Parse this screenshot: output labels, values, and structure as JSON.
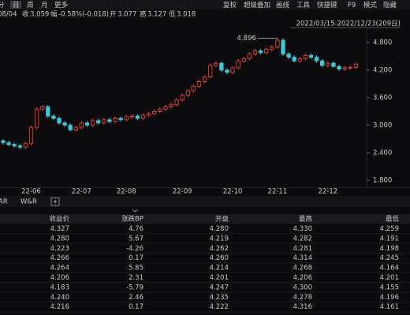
{
  "toolbar": {
    "periods": [
      "分",
      "日",
      "周",
      "月",
      "更多"
    ],
    "active_period": 1,
    "tools": [
      "复权",
      "超级叠加",
      "画线",
      "工具",
      "快捷键",
      "F9",
      "模式",
      "隐藏"
    ]
  },
  "quote": {
    "date": "08/04",
    "items": [
      {
        "label": "收",
        "value": "3.059",
        "color": "#e8a33a"
      },
      {
        "label": "幅",
        "value": "-0.58%(-0.018)",
        "color": "#2fc47a"
      },
      {
        "label": "开",
        "value": "3.077",
        "color": "#dddddd"
      },
      {
        "label": "高",
        "value": "3.127",
        "color": "#e8413a"
      },
      {
        "label": "低",
        "value": "3.018",
        "color": "#2fc47a"
      }
    ]
  },
  "chart_data": {
    "type": "candlestick",
    "range_label": "2022/03/15-2022/12/23(209日)",
    "up_color": "#e8413a",
    "down_color": "#3ec7d6",
    "categories": [
      null,
      null,
      null,
      null,
      null,
      "22-06",
      null,
      null,
      null,
      null,
      null,
      null,
      null,
      null,
      "22-07",
      null,
      null,
      null,
      null,
      null,
      null,
      null,
      "22-08",
      null,
      null,
      null,
      null,
      null,
      null,
      null,
      null,
      null,
      "22-09",
      null,
      null,
      null,
      null,
      null,
      null,
      null,
      null,
      "22-10",
      null,
      null,
      null,
      null,
      null,
      null,
      null,
      "22-11",
      null,
      null,
      null,
      null,
      null,
      null,
      null,
      null,
      "22-12",
      null,
      null,
      null,
      null,
      null
    ],
    "open": [
      2.66,
      2.62,
      2.58,
      2.55,
      2.52,
      2.6,
      2.95,
      3.35,
      3.4,
      3.2,
      3.15,
      3.05,
      3.0,
      2.9,
      2.95,
      3.05,
      3.0,
      3.1,
      3.05,
      3.12,
      3.08,
      3.15,
      3.12,
      3.18,
      3.2,
      3.15,
      3.22,
      3.25,
      3.3,
      3.35,
      3.4,
      3.45,
      3.55,
      3.65,
      3.75,
      3.85,
      3.95,
      4.05,
      4.3,
      4.35,
      4.2,
      4.15,
      4.25,
      4.4,
      4.45,
      4.55,
      4.62,
      4.58,
      4.65,
      4.7,
      4.85,
      4.55,
      4.48,
      4.4,
      4.45,
      4.52,
      4.48,
      4.4,
      4.3,
      4.35,
      4.28,
      4.22,
      4.25,
      4.26
    ],
    "high": [
      2.7,
      2.66,
      2.62,
      2.59,
      2.64,
      2.99,
      3.39,
      3.44,
      3.44,
      3.24,
      3.19,
      3.09,
      3.04,
      2.99,
      3.09,
      3.09,
      3.14,
      3.14,
      3.16,
      3.16,
      3.19,
      3.19,
      3.22,
      3.24,
      3.24,
      3.26,
      3.29,
      3.34,
      3.39,
      3.44,
      3.49,
      3.59,
      3.69,
      3.79,
      3.89,
      3.99,
      4.09,
      4.34,
      4.39,
      4.39,
      4.24,
      4.29,
      4.44,
      4.49,
      4.59,
      4.66,
      4.66,
      4.69,
      4.74,
      4.896,
      4.89,
      4.59,
      4.52,
      4.49,
      4.56,
      4.56,
      4.52,
      4.44,
      4.39,
      4.39,
      4.32,
      4.29,
      4.3,
      4.37
    ],
    "low": [
      2.58,
      2.54,
      2.51,
      2.48,
      2.48,
      2.56,
      2.91,
      3.31,
      3.16,
      3.11,
      3.01,
      2.96,
      2.86,
      2.86,
      2.91,
      2.96,
      2.96,
      3.01,
      3.01,
      3.04,
      3.04,
      3.08,
      3.08,
      3.14,
      3.11,
      3.11,
      3.18,
      3.21,
      3.26,
      3.31,
      3.36,
      3.41,
      3.51,
      3.61,
      3.71,
      3.81,
      3.91,
      4.01,
      4.26,
      4.16,
      4.11,
      4.11,
      4.21,
      4.36,
      4.41,
      4.51,
      4.54,
      4.54,
      4.61,
      4.66,
      4.51,
      4.44,
      4.36,
      4.36,
      4.41,
      4.44,
      4.36,
      4.26,
      4.26,
      4.24,
      4.18,
      4.18,
      4.21,
      4.22
    ],
    "close": [
      2.62,
      2.58,
      2.55,
      2.52,
      2.6,
      2.95,
      3.35,
      3.4,
      3.2,
      3.15,
      3.05,
      3.0,
      2.9,
      2.95,
      3.05,
      3.0,
      3.1,
      3.05,
      3.12,
      3.08,
      3.15,
      3.12,
      3.18,
      3.2,
      3.15,
      3.22,
      3.25,
      3.3,
      3.35,
      3.4,
      3.45,
      3.55,
      3.65,
      3.75,
      3.85,
      3.95,
      4.05,
      4.3,
      4.35,
      4.2,
      4.15,
      4.25,
      4.4,
      4.45,
      4.55,
      4.62,
      4.58,
      4.65,
      4.7,
      4.85,
      4.55,
      4.48,
      4.4,
      4.45,
      4.52,
      4.48,
      4.4,
      4.3,
      4.35,
      4.28,
      4.22,
      4.25,
      4.26,
      4.33
    ],
    "ylim": [
      1.7,
      5.0
    ],
    "yticks": [
      {
        "value": 4.8,
        "label": "4.800"
      },
      {
        "value": 4.2,
        "label": "4.200"
      },
      {
        "value": 3.6,
        "label": "3.600"
      },
      {
        "value": 3.0,
        "label": "3.000"
      },
      {
        "value": 2.4,
        "label": "2.400"
      },
      {
        "value": 1.8,
        "label": "1.800"
      }
    ],
    "max_annotation": {
      "index": 49,
      "label": "4.896"
    }
  },
  "indicator_tabs": [
    "AR",
    "W&R"
  ],
  "table": {
    "columns": [
      "收益价",
      "涨跌BP",
      "开盘",
      "最高",
      "最低"
    ],
    "rows": [
      [
        "4.327",
        "4.76",
        "4.280",
        "4.330",
        "4.259"
      ],
      [
        "4.280",
        "5.67",
        "4.219",
        "4.282",
        "4.191"
      ],
      [
        "4.223",
        "-4.26",
        "4.262",
        "4.281",
        "4.198"
      ],
      [
        "4.266",
        "0.17",
        "4.260",
        "4.314",
        "4.245"
      ],
      [
        "4.264",
        "5.85",
        "4.214",
        "4.268",
        "4.164"
      ],
      [
        "4.206",
        "2.31",
        "4.201",
        "4.206",
        "4.201"
      ],
      [
        "4.183",
        "-5.79",
        "4.247",
        "4.300",
        "4.155"
      ],
      [
        "4.240",
        "2.46",
        "4.235",
        "4.278",
        "4.196"
      ],
      [
        "4.216",
        "0.17",
        "4.222",
        "4.316",
        "4.161"
      ]
    ]
  }
}
